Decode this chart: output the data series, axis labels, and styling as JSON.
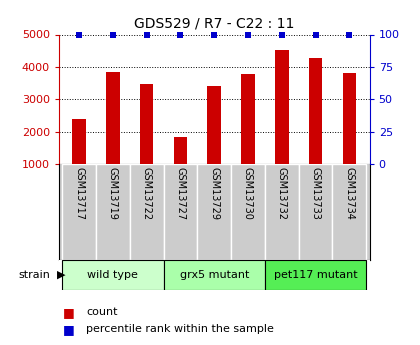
{
  "title": "GDS529 / R7 - C22 : 11",
  "samples": [
    "GSM13717",
    "GSM13719",
    "GSM13722",
    "GSM13727",
    "GSM13729",
    "GSM13730",
    "GSM13732",
    "GSM13733",
    "GSM13734"
  ],
  "counts": [
    2400,
    3850,
    3480,
    1820,
    3420,
    3780,
    4530,
    4270,
    3800
  ],
  "percentile_ranks": [
    100,
    100,
    100,
    100,
    100,
    100,
    100,
    100,
    100
  ],
  "bar_color": "#cc0000",
  "dot_color": "#0000cc",
  "ylim_left": [
    1000,
    5000
  ],
  "ylim_right": [
    0,
    100
  ],
  "yticks_left": [
    1000,
    2000,
    3000,
    4000,
    5000
  ],
  "yticks_right": [
    0,
    25,
    50,
    75,
    100
  ],
  "groups": [
    {
      "label": "wild type",
      "start": 0,
      "end": 3,
      "color": "#ccffcc"
    },
    {
      "label": "grx5 mutant",
      "start": 3,
      "end": 6,
      "color": "#aaffaa"
    },
    {
      "label": "pet117 mutant",
      "start": 6,
      "end": 9,
      "color": "#55ee55"
    }
  ],
  "strain_label": "strain",
  "legend_count_label": "count",
  "legend_pct_label": "percentile rank within the sample",
  "left_axis_color": "#cc0000",
  "right_axis_color": "#0000cc",
  "background_color": "#ffffff",
  "plot_bg_color": "#ffffff",
  "grid_color": "#000000",
  "sample_box_color": "#cccccc",
  "bar_width": 0.4
}
